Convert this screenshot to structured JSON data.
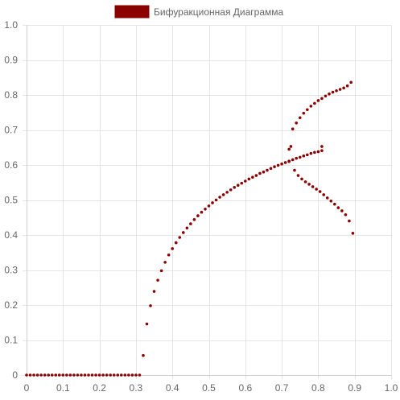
{
  "chart_data": {
    "type": "scatter",
    "title": "",
    "xlabel": "",
    "ylabel": "",
    "xlim": [
      0,
      1
    ],
    "ylim": [
      0,
      1
    ],
    "x_ticks": [
      "0",
      "0.1",
      "0.2",
      "0.3",
      "0.4",
      "0.5",
      "0.6",
      "0.7",
      "0.8",
      "0.9",
      "1.0"
    ],
    "y_ticks": [
      "0",
      "0.1",
      "0.2",
      "0.3",
      "0.4",
      "0.5",
      "0.6",
      "0.7",
      "0.8",
      "0.9",
      "1.0"
    ],
    "grid": true,
    "legend_position": "top-center",
    "series": [
      {
        "name": "Бифуракционная Диаграмма",
        "color": "#8b0000",
        "points": [
          [
            0.0,
            0.0
          ],
          [
            0.01,
            0.0
          ],
          [
            0.02,
            0.0
          ],
          [
            0.03,
            0.0
          ],
          [
            0.04,
            0.0
          ],
          [
            0.05,
            0.0
          ],
          [
            0.06,
            0.0
          ],
          [
            0.07,
            0.0
          ],
          [
            0.08,
            0.0
          ],
          [
            0.09,
            0.0
          ],
          [
            0.1,
            0.0
          ],
          [
            0.11,
            0.0
          ],
          [
            0.12,
            0.0
          ],
          [
            0.13,
            0.0
          ],
          [
            0.14,
            0.0
          ],
          [
            0.15,
            0.0
          ],
          [
            0.16,
            0.0
          ],
          [
            0.17,
            0.0
          ],
          [
            0.18,
            0.0
          ],
          [
            0.19,
            0.0
          ],
          [
            0.2,
            0.0
          ],
          [
            0.21,
            0.0
          ],
          [
            0.22,
            0.0
          ],
          [
            0.23,
            0.0
          ],
          [
            0.24,
            0.0
          ],
          [
            0.25,
            0.0
          ],
          [
            0.26,
            0.0
          ],
          [
            0.27,
            0.0
          ],
          [
            0.28,
            0.0
          ],
          [
            0.29,
            0.0
          ],
          [
            0.3,
            0.0
          ],
          [
            0.31,
            0.0
          ],
          [
            0.32,
            0.056
          ],
          [
            0.33,
            0.146
          ],
          [
            0.34,
            0.198
          ],
          [
            0.35,
            0.239
          ],
          [
            0.36,
            0.271
          ],
          [
            0.37,
            0.298
          ],
          [
            0.38,
            0.322
          ],
          [
            0.39,
            0.343
          ],
          [
            0.4,
            0.361
          ],
          [
            0.41,
            0.378
          ],
          [
            0.42,
            0.393
          ],
          [
            0.43,
            0.407
          ],
          [
            0.44,
            0.42
          ],
          [
            0.45,
            0.432
          ],
          [
            0.46,
            0.444
          ],
          [
            0.47,
            0.455
          ],
          [
            0.48,
            0.465
          ],
          [
            0.49,
            0.474
          ],
          [
            0.5,
            0.483
          ],
          [
            0.51,
            0.492
          ],
          [
            0.52,
            0.5
          ],
          [
            0.53,
            0.508
          ],
          [
            0.54,
            0.515
          ],
          [
            0.55,
            0.522
          ],
          [
            0.56,
            0.529
          ],
          [
            0.57,
            0.536
          ],
          [
            0.58,
            0.542
          ],
          [
            0.59,
            0.548
          ],
          [
            0.6,
            0.554
          ],
          [
            0.61,
            0.56
          ],
          [
            0.62,
            0.565
          ],
          [
            0.63,
            0.57
          ],
          [
            0.64,
            0.576
          ],
          [
            0.65,
            0.58
          ],
          [
            0.66,
            0.585
          ],
          [
            0.67,
            0.59
          ],
          [
            0.68,
            0.595
          ],
          [
            0.69,
            0.599
          ],
          [
            0.7,
            0.603
          ],
          [
            0.71,
            0.607
          ],
          [
            0.72,
            0.611
          ],
          [
            0.72,
            0.61
          ],
          [
            0.73,
            0.615
          ],
          [
            0.74,
            0.619
          ],
          [
            0.75,
            0.622
          ],
          [
            0.76,
            0.626
          ],
          [
            0.77,
            0.629
          ],
          [
            0.78,
            0.633
          ],
          [
            0.79,
            0.636
          ],
          [
            0.8,
            0.638
          ],
          [
            0.81,
            0.653
          ],
          [
            0.81,
            0.641
          ],
          [
            0.72,
            0.645
          ],
          [
            0.725,
            0.653
          ],
          [
            0.73,
            0.703
          ],
          [
            0.735,
            0.585
          ],
          [
            0.74,
            0.72
          ],
          [
            0.745,
            0.57
          ],
          [
            0.75,
            0.735
          ],
          [
            0.755,
            0.56
          ],
          [
            0.76,
            0.748
          ],
          [
            0.765,
            0.552
          ],
          [
            0.77,
            0.758
          ],
          [
            0.775,
            0.545
          ],
          [
            0.78,
            0.768
          ],
          [
            0.785,
            0.538
          ],
          [
            0.79,
            0.776
          ],
          [
            0.795,
            0.531
          ],
          [
            0.8,
            0.784
          ],
          [
            0.805,
            0.524
          ],
          [
            0.81,
            0.79
          ],
          [
            0.815,
            0.515
          ],
          [
            0.82,
            0.797
          ],
          [
            0.825,
            0.506
          ],
          [
            0.83,
            0.803
          ],
          [
            0.835,
            0.497
          ],
          [
            0.84,
            0.808
          ],
          [
            0.845,
            0.488
          ],
          [
            0.85,
            0.812
          ],
          [
            0.855,
            0.478
          ],
          [
            0.86,
            0.816
          ],
          [
            0.865,
            0.469
          ],
          [
            0.87,
            0.82
          ],
          [
            0.875,
            0.458
          ],
          [
            0.88,
            0.826
          ],
          [
            0.885,
            0.44
          ],
          [
            0.89,
            0.836
          ],
          [
            0.895,
            0.405
          ]
        ]
      }
    ]
  }
}
